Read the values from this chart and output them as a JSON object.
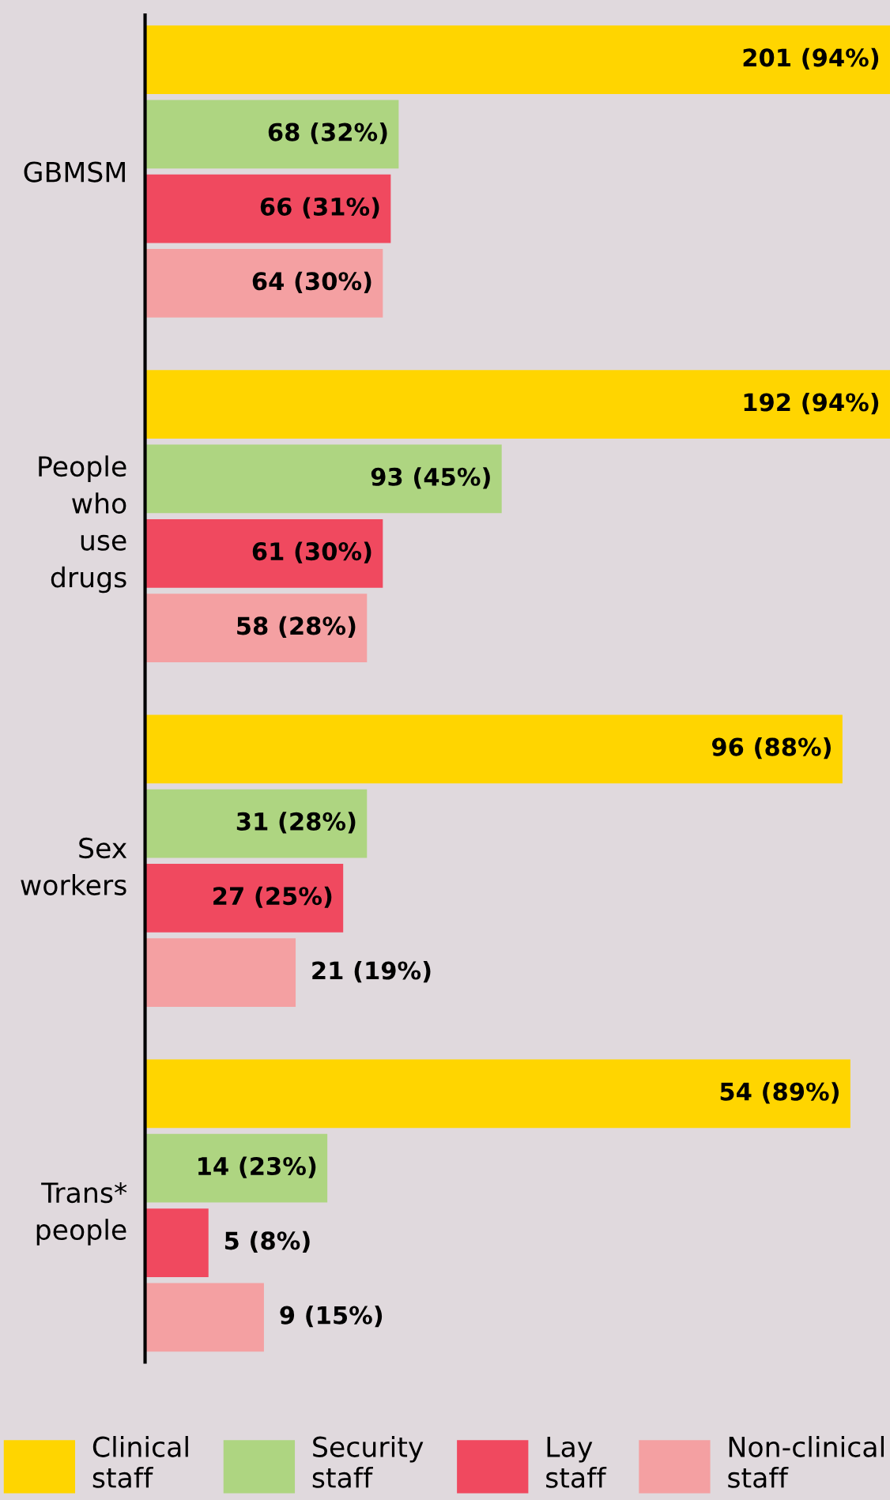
{
  "chart_data": {
    "type": "bar",
    "orientation": "horizontal",
    "categories": [
      "GBMSM",
      "People\nwho\nuse\ndrugs",
      "Sex\nworkers",
      "Trans*\npeople"
    ],
    "series": [
      {
        "name": "Clinical\nstaff",
        "color": "#ffd500",
        "values": [
          94,
          94,
          88,
          89
        ],
        "value_labels": [
          "201 (94%)",
          "192 (94%)",
          "96 (88%)",
          "54 (89%)"
        ]
      },
      {
        "name": "Security\nstaff",
        "color": "#aed581",
        "values": [
          32,
          45,
          28,
          23
        ],
        "value_labels": [
          "68 (32%)",
          "93 (45%)",
          "31 (28%)",
          "14 (23%)"
        ]
      },
      {
        "name": "Lay\nstaff",
        "color": "#f0495f",
        "values": [
          31,
          30,
          25,
          8
        ],
        "value_labels": [
          "66 (31%)",
          "61 (30%)",
          "27 (25%)",
          "5 (8%)"
        ]
      },
      {
        "name": "Non-clinical\nstaff",
        "color": "#f4a0a2",
        "values": [
          30,
          28,
          19,
          15
        ],
        "value_labels": [
          "64 (30%)",
          "58 (28%)",
          "21 (19%)",
          "9 (15%)"
        ]
      }
    ],
    "legend": "bottom",
    "grid": false
  }
}
